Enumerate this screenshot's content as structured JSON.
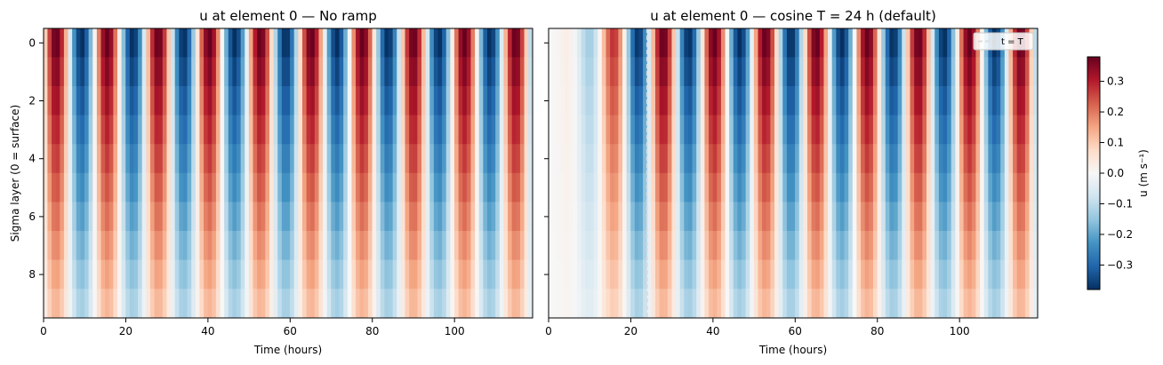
{
  "chart_data": [
    {
      "type": "heatmap",
      "title": "u at element 0 — No ramp",
      "xlabel": "Time (hours)",
      "ylabel": "Sigma layer (0 = surface)",
      "xlim": [
        0,
        119
      ],
      "ylim": [
        9.5,
        -0.5
      ],
      "x_ticks": [
        0,
        20,
        40,
        60,
        80,
        100
      ],
      "y_ticks": [
        0,
        2,
        4,
        6,
        8
      ],
      "n_layers": 10,
      "time_step_hours": 1,
      "n_time_steps": 119,
      "tidal_period_hours": 12.42,
      "surface_amplitude": 0.38,
      "bottom_amplitude": 0.13,
      "ramp": "none",
      "ramp_T_hours": 0
    },
    {
      "type": "heatmap",
      "title": "u at element 0 — cosine T = 24 h (default)",
      "xlabel": "Time (hours)",
      "ylabel": "",
      "xlim": [
        0,
        119
      ],
      "ylim": [
        9.5,
        -0.5
      ],
      "x_ticks": [
        0,
        20,
        40,
        60,
        80,
        100
      ],
      "y_ticks": [
        0,
        2,
        4,
        6,
        8
      ],
      "n_layers": 10,
      "time_step_hours": 1,
      "n_time_steps": 119,
      "tidal_period_hours": 12.42,
      "surface_amplitude": 0.38,
      "bottom_amplitude": 0.13,
      "ramp": "cosine",
      "ramp_T_hours": 24,
      "vline": {
        "x": 24,
        "label": "t = T",
        "style": "dashed"
      },
      "legend_position": "top-right"
    }
  ],
  "colorbar": {
    "label": "u (m s⁻¹)",
    "colormap": "RdBu_r",
    "vmin": -0.38,
    "vmax": 0.38,
    "ticks": [
      0.3,
      0.2,
      0.1,
      0.0,
      -0.1,
      -0.2,
      -0.3
    ],
    "tick_labels": [
      "0.3",
      "0.2",
      "0.1",
      "0.0",
      "−0.1",
      "−0.2",
      "−0.3"
    ]
  },
  "colors": {
    "neg_dark": "#053061",
    "neg_mid": "#2166ac",
    "neg_light": "#92c5de",
    "neutral": "#f7f7f7",
    "pos_light": "#f4a582",
    "pos_mid": "#d6604d",
    "pos_dark": "#67001f"
  }
}
